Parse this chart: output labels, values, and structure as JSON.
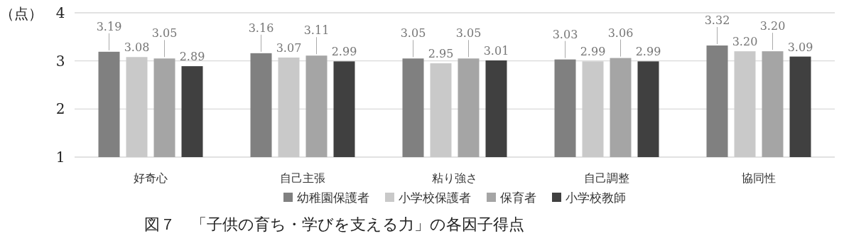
{
  "chart_data": {
    "type": "bar",
    "title": "図７　「子供の育ち・学びを支える力」の各因子得点",
    "ylabel": "（点）",
    "categories": [
      "好奇心",
      "自己主張",
      "粘り強さ",
      "自己調整",
      "協同性"
    ],
    "series": [
      {
        "name": "幼稚園保護者",
        "color": "#808080",
        "values": [
          3.19,
          3.16,
          3.05,
          3.03,
          3.32
        ],
        "value_labels": [
          "3.19",
          "3.16",
          "3.05",
          "3.03",
          "3.32"
        ]
      },
      {
        "name": "小学校保護者",
        "color": "#c9c9c9",
        "values": [
          3.08,
          3.07,
          2.95,
          2.99,
          3.2
        ],
        "value_labels": [
          "3.08",
          "3.07",
          "2.95",
          "2.99",
          "3.20"
        ]
      },
      {
        "name": "保育者",
        "color": "#a5a5a5",
        "values": [
          3.05,
          3.11,
          3.05,
          3.06,
          3.2
        ],
        "value_labels": [
          "3.05",
          "3.11",
          "3.05",
          "3.06",
          "3.20"
        ]
      },
      {
        "name": "小学校教師",
        "color": "#404040",
        "values": [
          2.89,
          2.99,
          3.01,
          2.99,
          3.09
        ],
        "value_labels": [
          "2.89",
          "2.99",
          "3.01",
          "2.99",
          "3.09"
        ]
      }
    ],
    "ylim": [
      1,
      4
    ],
    "yticks": [
      1,
      2,
      3,
      4
    ],
    "grid": "y",
    "legend": "bottom"
  }
}
